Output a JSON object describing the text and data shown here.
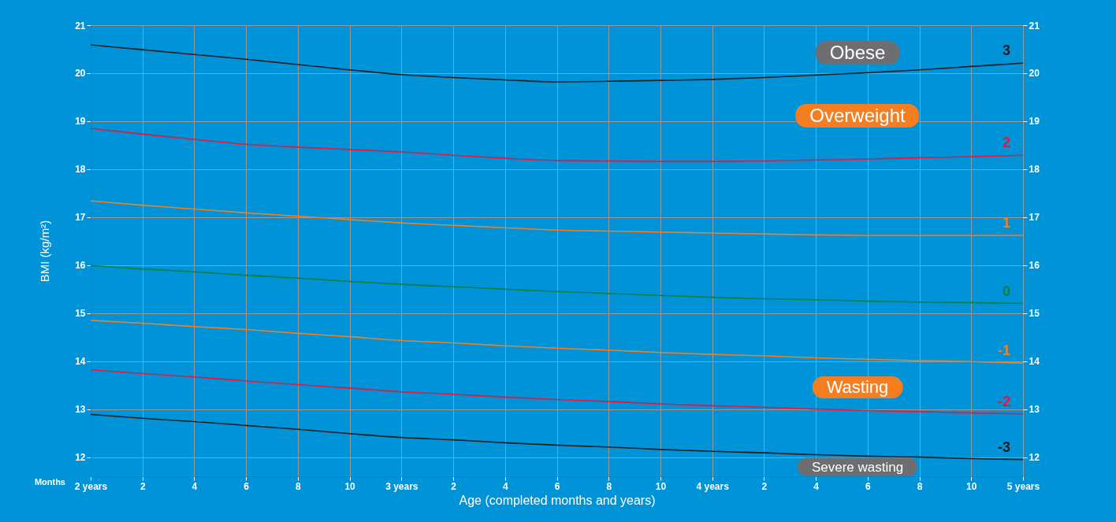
{
  "chart_data": {
    "type": "line",
    "xlabel": "Age (completed months and years)",
    "ylabel": "BMI (kg/m²)",
    "categories": [
      "2 years",
      "2",
      "4",
      "6",
      "8",
      "10",
      "3 years",
      "2",
      "4",
      "6",
      "8",
      "10",
      "4 years",
      "2",
      "4",
      "6",
      "8",
      "10",
      "5 years"
    ],
    "ylim": [
      11.6,
      21
    ],
    "yticks": [
      12,
      13,
      14,
      15,
      16,
      17,
      18,
      19,
      20,
      21
    ],
    "y2lim": [
      11.6,
      21
    ],
    "y2ticks": [
      12,
      13,
      14,
      15,
      16,
      17,
      18,
      19,
      20,
      21
    ],
    "grid": true,
    "marker": "none",
    "line_style": "solid",
    "series": [
      {
        "name": "3",
        "color": "#231f20",
        "values": [
          20.59,
          20.49,
          20.39,
          20.29,
          20.18,
          20.07,
          19.97,
          19.91,
          19.86,
          19.82,
          19.83,
          19.85,
          19.87,
          19.91,
          19.96,
          20.01,
          20.07,
          20.14,
          20.21
        ]
      },
      {
        "name": "2",
        "color": "#e4173f",
        "values": [
          18.85,
          18.73,
          18.62,
          18.52,
          18.46,
          18.41,
          18.36,
          18.29,
          18.23,
          18.18,
          18.17,
          18.16,
          18.16,
          18.17,
          18.19,
          18.21,
          18.24,
          18.26,
          18.29
        ]
      },
      {
        "name": "1",
        "color": "#f47e20",
        "values": [
          17.34,
          17.25,
          17.17,
          17.09,
          17.02,
          16.95,
          16.88,
          16.83,
          16.78,
          16.73,
          16.71,
          16.69,
          16.67,
          16.65,
          16.63,
          16.62,
          16.62,
          16.62,
          16.62
        ]
      },
      {
        "name": "0",
        "color": "#007f3d",
        "values": [
          15.99,
          15.92,
          15.86,
          15.79,
          15.73,
          15.66,
          15.6,
          15.55,
          15.5,
          15.45,
          15.41,
          15.37,
          15.33,
          15.3,
          15.28,
          15.25,
          15.23,
          15.22,
          15.2
        ]
      },
      {
        "name": "-1",
        "color": "#f47e20",
        "values": [
          14.85,
          14.79,
          14.72,
          14.66,
          14.58,
          14.51,
          14.43,
          14.38,
          14.32,
          14.27,
          14.23,
          14.18,
          14.14,
          14.11,
          14.07,
          14.04,
          14.01,
          13.99,
          13.96
        ]
      },
      {
        "name": "-2",
        "color": "#e4173f",
        "values": [
          13.82,
          13.74,
          13.67,
          13.59,
          13.51,
          13.44,
          13.36,
          13.31,
          13.25,
          13.2,
          13.16,
          13.11,
          13.07,
          13.04,
          13.0,
          12.97,
          12.95,
          12.92,
          12.9
        ]
      },
      {
        "name": "-3",
        "color": "#231f20",
        "values": [
          12.89,
          12.81,
          12.74,
          12.66,
          12.58,
          12.49,
          12.41,
          12.36,
          12.3,
          12.25,
          12.21,
          12.16,
          12.12,
          12.09,
          12.05,
          12.02,
          12.0,
          11.97,
          11.95
        ]
      }
    ],
    "annotations": [
      "Obese",
      "Overweight",
      "Wasting",
      "Severe wasting",
      "Months"
    ]
  }
}
